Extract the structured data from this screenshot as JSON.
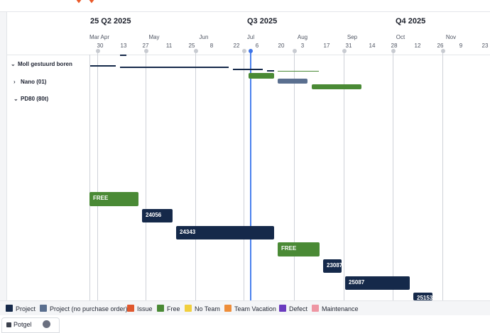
{
  "quarters": [
    {
      "label": "25 Q2 2025",
      "x": 127
    },
    {
      "label": "Q3 2025",
      "x": 348
    },
    {
      "label": "Q4 2025",
      "x": 557
    }
  ],
  "months": [
    "Mar Apr",
    "May",
    "Jun",
    "Jul",
    "Aug",
    "Sep",
    "Oct",
    "Nov"
  ],
  "days": [
    "30",
    "13",
    "27",
    "11",
    "25",
    "8",
    "22",
    "6",
    "20",
    "3",
    "17",
    "31",
    "14",
    "28",
    "12",
    "26",
    "9",
    "23"
  ],
  "rows": [
    {
      "label": "Moll gestuurd boren",
      "chevron": "⌄"
    },
    {
      "label": "Nano (01)",
      "chevron": "›"
    },
    {
      "label": "PD80 (80t)",
      "chevron": "⌄"
    }
  ],
  "bars": [
    {
      "label": "FREE",
      "status": "Free"
    },
    {
      "label": "24056",
      "status": "Project"
    },
    {
      "label": "24343",
      "status": "Project"
    },
    {
      "label": "FREE",
      "status": "Free"
    },
    {
      "label": "23087",
      "status": "Project"
    },
    {
      "label": "25087",
      "status": "Project"
    },
    {
      "label": "25153",
      "status": "Project"
    }
  ],
  "legend": [
    {
      "label": "Project",
      "color": "#15294a"
    },
    {
      "label": "Project (no purchase order)",
      "color": "#5a6f8f"
    },
    {
      "label": "Issue",
      "color": "#e0582e"
    },
    {
      "label": "Free",
      "color": "#4a8a35"
    },
    {
      "label": "No Team",
      "color": "#f1cf3e"
    },
    {
      "label": "Team Vacation",
      "color": "#ee8e3a"
    },
    {
      "label": "Defect",
      "color": "#6a3bbf"
    },
    {
      "label": "Maintenance",
      "color": "#ee96a3"
    }
  ],
  "bottom_tab": {
    "label": "Potgel"
  },
  "colors": {
    "project": "#15294a",
    "free": "#4a8a35",
    "project_no_po": "#5a6f8f",
    "today": "#4c82ee"
  }
}
